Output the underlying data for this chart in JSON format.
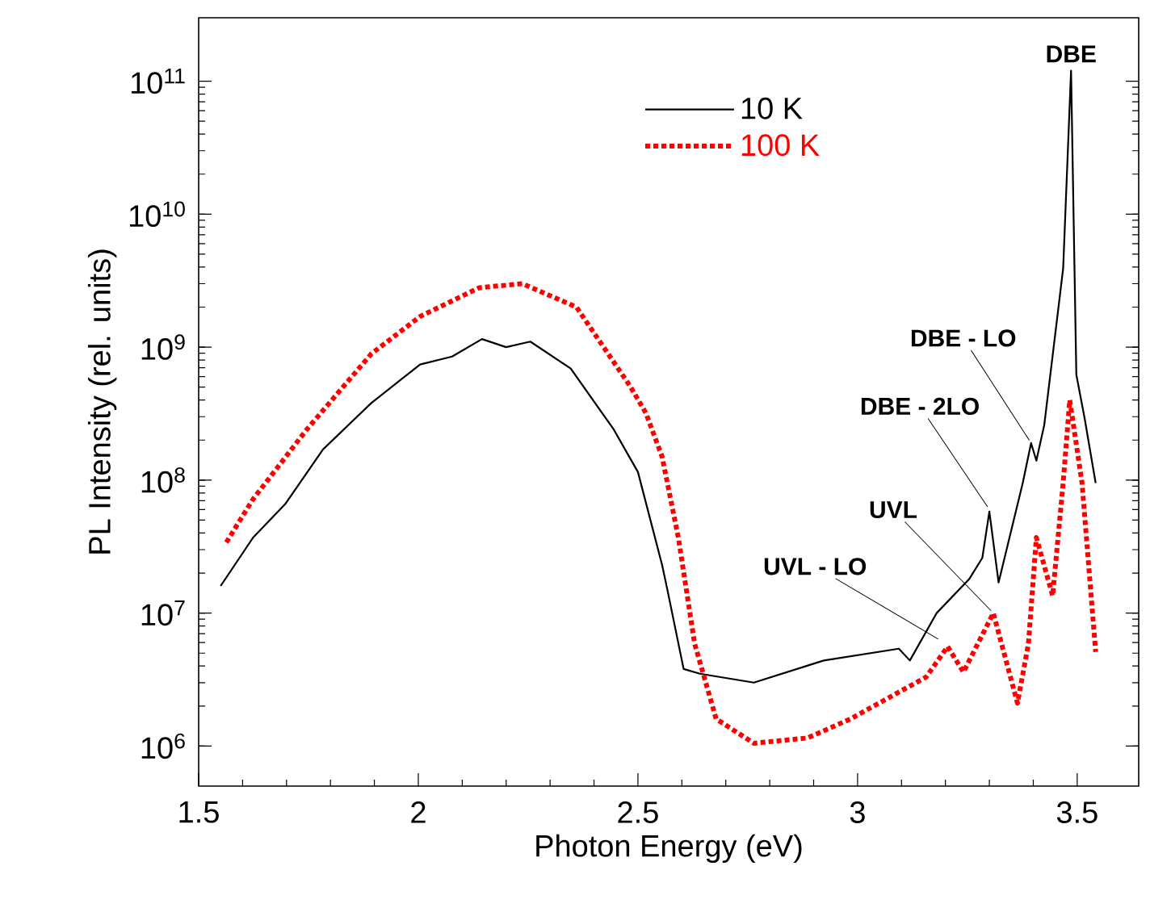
{
  "chart_data": {
    "type": "line",
    "xlabel": "Photon Energy (eV)",
    "ylabel": "PL Intensity (rel. units)",
    "log": "y",
    "xlim": [
      1.5,
      3.64
    ],
    "xticks": [
      1.5,
      2,
      2.5,
      3,
      3.5
    ],
    "ylim": [
      500000,
      300000000000
    ],
    "yticks": [
      {
        "value": 1000000,
        "label": "10$^{6}$"
      },
      {
        "value": 10000000,
        "label": "10$^{7}$"
      },
      {
        "value": 100000000,
        "label": "10$^{8}$"
      },
      {
        "value": 1000000000,
        "label": "10$^{9}$"
      },
      {
        "value": 10000000000,
        "label": "10$^{10}$"
      },
      {
        "value": 100000000000,
        "label": "10$^{11}$"
      }
    ],
    "legend": "top",
    "grid": false,
    "series": [
      {
        "name": "10 K",
        "color": "#000000",
        "line_style": "solid",
        "x": [
          1.55,
          1.624,
          1.697,
          1.783,
          1.893,
          2.004,
          2.077,
          2.145,
          2.2,
          2.255,
          2.347,
          2.445,
          2.5,
          2.555,
          2.567,
          2.604,
          2.641,
          2.764,
          2.923,
          3.094,
          3.119,
          3.18,
          3.254,
          3.284,
          3.3,
          3.321,
          3.376,
          3.395,
          3.407,
          3.425,
          3.468,
          3.486,
          3.498,
          3.517,
          3.542
        ],
        "values": [
          16000000,
          37000000,
          66000000,
          170000000,
          380000000,
          740000000,
          850000000,
          1150000000,
          1000000000,
          1100000000,
          690000000,
          240000000,
          115000000,
          23000000,
          15000000,
          3800000,
          3500000,
          3000000,
          4400000,
          5400000,
          4400000,
          10000000,
          18000000,
          26000000,
          58000000,
          17000000,
          95000000,
          190000000,
          140000000,
          260000000,
          3900000000,
          120000000000,
          620000000,
          290000000,
          95000000
        ]
      },
      {
        "name": "100 K",
        "color": "#ff0000",
        "line_style": "dotted",
        "x": [
          1.563,
          1.624,
          1.746,
          1.893,
          2.004,
          2.139,
          2.237,
          2.36,
          2.482,
          2.518,
          2.555,
          2.592,
          2.629,
          2.678,
          2.764,
          2.886,
          2.984,
          3.07,
          3.156,
          3.205,
          3.241,
          3.309,
          3.364,
          3.389,
          3.407,
          3.444,
          3.468,
          3.483,
          3.511,
          3.542
        ],
        "values": [
          34000000,
          72000000,
          240000000,
          890000000,
          1700000000,
          2800000000,
          3000000000,
          2000000000,
          510000000,
          320000000,
          150000000,
          37000000,
          5900000,
          1600000,
          1050000,
          1150000,
          1600000,
          2300000,
          3300000,
          5600000,
          3600000,
          10000000,
          2100000,
          5900000,
          37000000,
          13500000,
          95000000,
          400000000,
          95000000,
          5100000
        ]
      }
    ],
    "annotations": [
      {
        "text": "DBE",
        "x": 3.486,
        "y": 120000000000
      },
      {
        "text": "DBE - LO",
        "x": 3.395,
        "y": 190000000
      },
      {
        "text": "DBE - 2LO",
        "x": 3.3,
        "y": 60000000
      },
      {
        "text": "UVL",
        "x": 3.309,
        "y": 10000000
      },
      {
        "text": "UVL - LO",
        "x": 3.19,
        "y": 6200000
      }
    ]
  }
}
